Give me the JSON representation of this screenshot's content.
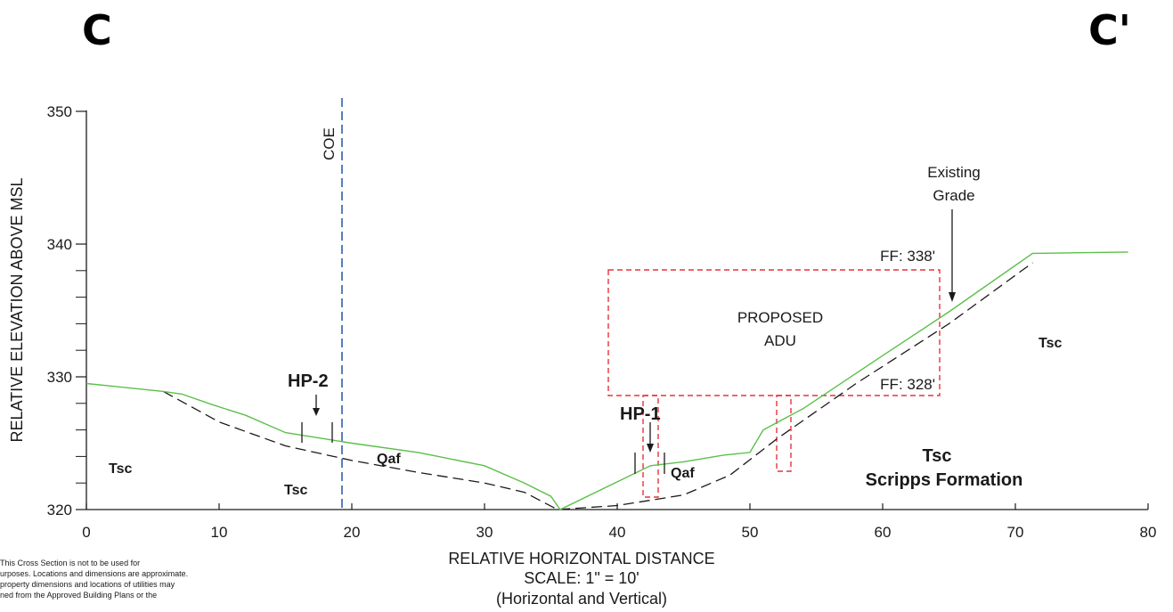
{
  "header": {
    "left_label": "C",
    "right_label": "C'"
  },
  "axes": {
    "ylabel": "RELATIVE ELEVATION ABOVE MSL",
    "xlabel": "RELATIVE HORIZONTAL DISTANCE",
    "scale": "SCALE: 1\" = 10'",
    "scale_note": "(Horizontal and Vertical)",
    "x_ticks": [
      "0",
      "10",
      "20",
      "30",
      "40",
      "50",
      "60",
      "70",
      "80"
    ],
    "y_ticks": [
      "320",
      "330",
      "340",
      "350"
    ]
  },
  "annotations": {
    "coe": "COE",
    "existing_grade_line1": "Existing",
    "existing_grade_line2": "Grade",
    "ff_top": "FF: 338'",
    "ff_bottom": "FF: 328'",
    "proposed_line1": "PROPOSED",
    "proposed_line2": "ADU",
    "hp1": "HP-1",
    "hp2": "HP-2"
  },
  "units": {
    "tsc_left": "Tsc",
    "tsc_bottom": "Tsc",
    "qaf_left": "Qaf",
    "qaf_right": "Qaf",
    "tsc_right_upper": "Tsc",
    "tsc_right_lower": "Tsc",
    "scripps": "Scripps Formation"
  },
  "disclaimer": {
    "line1": "This Cross Section is not to be used for",
    "line2": "urposes. Locations and dimensions are approximate.",
    "line3": "property dimensions and locations of utilities may",
    "line4": "ned from the Approved Building Plans or the"
  },
  "colors": {
    "grade_line": "#5cbf4a",
    "contact_line": "#1a1a1a",
    "coe_line": "#2e5fa8",
    "adu_outline": "#e8323a"
  },
  "chart_data": {
    "type": "line",
    "x": [
      0,
      10,
      20,
      30,
      40,
      50,
      60,
      70,
      80
    ],
    "xlim": [
      0,
      80
    ],
    "ylim": [
      320,
      350
    ],
    "series": [
      {
        "points": [
          [
            0,
            329.5
          ],
          [
            5.8,
            328.9
          ],
          [
            7.2,
            328.7
          ],
          [
            9.5,
            327.9
          ],
          [
            12,
            327.1
          ],
          [
            15,
            325.8
          ],
          [
            20,
            325.0
          ],
          [
            25,
            324.3
          ],
          [
            30,
            323.3
          ],
          [
            33,
            322.0
          ],
          [
            35,
            321.0
          ],
          [
            35.7,
            320.0
          ],
          [
            42.5,
            323.3
          ],
          [
            45,
            323.6
          ],
          [
            48,
            324.1
          ],
          [
            50,
            324.3
          ],
          [
            51,
            326.0
          ],
          [
            54,
            327.6
          ],
          [
            60,
            331.6
          ],
          [
            65,
            334.9
          ],
          [
            71.3,
            339.3
          ],
          [
            78.5,
            339.4
          ]
        ]
      },
      {
        "points": [
          [
            5.8,
            328.9
          ],
          [
            10,
            326.6
          ],
          [
            15,
            324.8
          ],
          [
            20,
            323.7
          ],
          [
            25,
            322.8
          ],
          [
            30,
            322.0
          ],
          [
            33,
            321.3
          ],
          [
            35.5,
            320.0
          ],
          [
            40,
            320.3
          ],
          [
            45,
            321.1
          ],
          [
            48.5,
            322.6
          ],
          [
            52,
            325.3
          ],
          [
            58,
            329.5
          ],
          [
            65,
            334.0
          ],
          [
            71.3,
            338.6
          ]
        ]
      }
    ],
    "vertical_reference": {
      "x": 19.3,
      "label": "COE"
    },
    "proposed_structure": {
      "x_range": [
        39.3,
        64.6
      ],
      "y_range": [
        328.5,
        338.0
      ]
    },
    "borings": [
      {
        "label": "HP-1",
        "x": 42.6
      },
      {
        "label": "HP-2",
        "x": 17.5
      }
    ]
  }
}
